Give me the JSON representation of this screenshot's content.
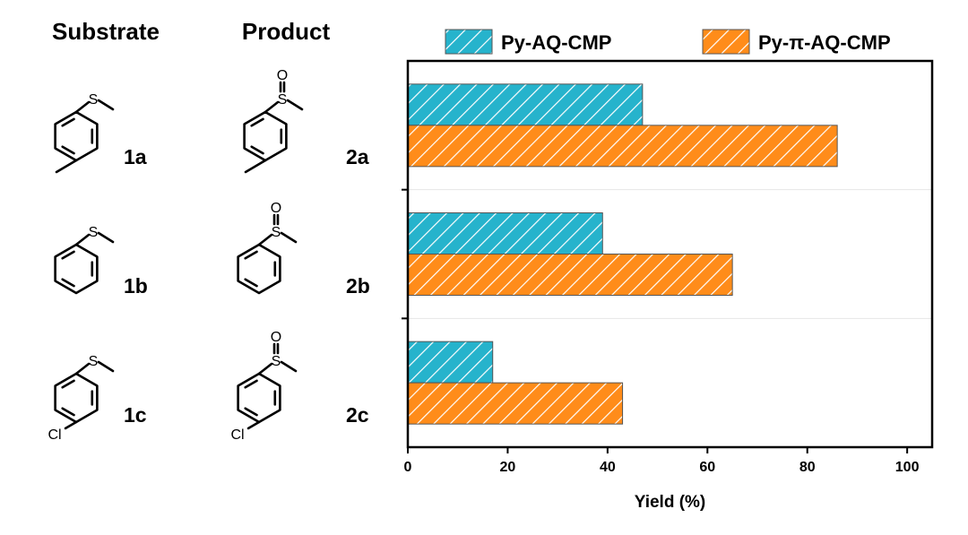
{
  "headers": {
    "substrate": "Substrate",
    "product": "Product"
  },
  "compounds": [
    {
      "substrate_label": "1a",
      "product_label": "2a",
      "substituent": ""
    },
    {
      "substrate_label": "1b",
      "product_label": "2b",
      "substituent": ""
    },
    {
      "substrate_label": "1c",
      "product_label": "2c",
      "substituent": "Cl"
    }
  ],
  "atoms": {
    "sulfur": "S",
    "oxygen": "O",
    "chlorine": "Cl"
  },
  "chart_data": {
    "type": "bar",
    "orientation": "horizontal",
    "categories": [
      "2a",
      "2b",
      "2c"
    ],
    "series": [
      {
        "name": "Py-AQ-CMP",
        "values": [
          47,
          39,
          17
        ],
        "color": "#26b3cc",
        "hatch": "diagonal"
      },
      {
        "name": "Py-π-AQ-CMP",
        "values": [
          86,
          65,
          43
        ],
        "color": "#ff8c1a",
        "hatch": "diagonal"
      }
    ],
    "xlabel": "Yield (%)",
    "xlim": [
      0,
      105
    ],
    "xticks": [
      0,
      20,
      40,
      60,
      80,
      100
    ],
    "legend_position": "top",
    "grid": false
  }
}
